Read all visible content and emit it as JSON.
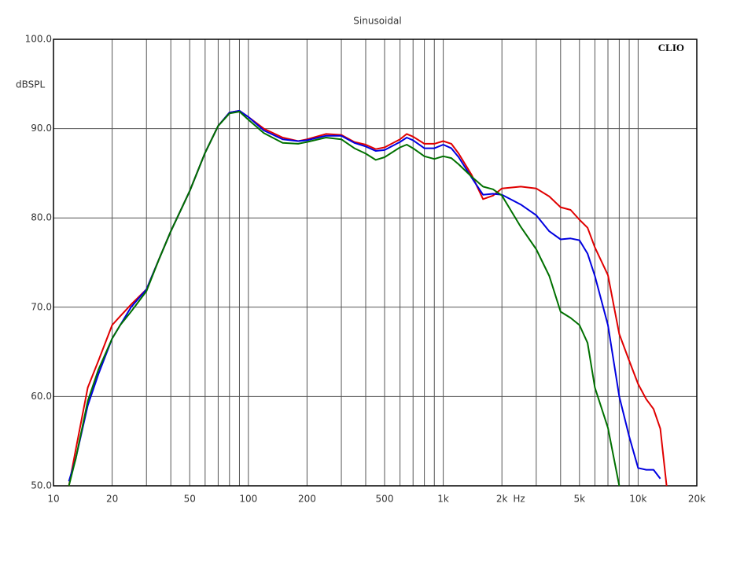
{
  "chart_data": {
    "type": "line",
    "title": "Sinusoidal",
    "ylabel": "dBSPL",
    "annotation": "CLIO",
    "x_unit": "Hz",
    "log_x": true,
    "grid": true,
    "xlim": [
      10,
      20000
    ],
    "ylim": [
      50,
      100
    ],
    "xticks": [
      {
        "value": 10,
        "label": "10"
      },
      {
        "value": 20,
        "label": "20"
      },
      {
        "value": 50,
        "label": "50"
      },
      {
        "value": 100,
        "label": "100"
      },
      {
        "value": 200,
        "label": "200"
      },
      {
        "value": 500,
        "label": "500"
      },
      {
        "value": 1000,
        "label": "1k"
      },
      {
        "value": 2000,
        "label": "2k"
      },
      {
        "value": 5000,
        "label": "5k"
      },
      {
        "value": 10000,
        "label": "10k"
      },
      {
        "value": 20000,
        "label": "20k"
      }
    ],
    "xminor": [
      30,
      40,
      60,
      70,
      80,
      90,
      300,
      400,
      600,
      700,
      800,
      900,
      3000,
      4000,
      6000,
      7000,
      8000,
      9000
    ],
    "yticks": [
      {
        "value": 50,
        "label": "50.0"
      },
      {
        "value": 60,
        "label": "60.0"
      },
      {
        "value": 70,
        "label": "70.0"
      },
      {
        "value": 80,
        "label": "80.0"
      },
      {
        "value": 90,
        "label": "90.0"
      },
      {
        "value": 100,
        "label": "100.0"
      }
    ],
    "x": [
      12,
      13,
      15,
      17,
      20,
      22,
      25,
      30,
      35,
      40,
      50,
      60,
      70,
      80,
      90,
      100,
      120,
      150,
      180,
      200,
      250,
      300,
      350,
      400,
      450,
      500,
      600,
      650,
      700,
      800,
      900,
      1000,
      1100,
      1200,
      1400,
      1600,
      1800,
      2000,
      2500,
      3000,
      3500,
      4000,
      4500,
      5000,
      5500,
      6000,
      7000,
      8000,
      9000,
      10000,
      11000,
      12000,
      13000,
      14000
    ],
    "series": [
      {
        "color": "#e00000",
        "values": [
          50,
          54,
          61,
          64,
          68,
          69,
          70.3,
          72,
          75.5,
          78.5,
          83,
          87.3,
          90.3,
          91.8,
          92,
          91.3,
          90,
          89,
          88.6,
          88.8,
          89.4,
          89.3,
          88.5,
          88.2,
          87.7,
          87.9,
          88.8,
          89.4,
          89.1,
          88.3,
          88.3,
          88.6,
          88.3,
          87.2,
          84.8,
          82.1,
          82.5,
          83.3,
          83.5,
          83.3,
          82.4,
          81.2,
          80.9,
          79.8,
          78.9,
          76.7,
          73.6,
          67,
          64,
          61.4,
          59.7,
          58.6,
          56.4,
          50
        ]
      },
      {
        "color": "#0000e0",
        "values": [
          50.5,
          53,
          59,
          62.5,
          66.5,
          68,
          70,
          72,
          75.5,
          78.5,
          83,
          87.3,
          90.3,
          91.8,
          92,
          91.3,
          89.8,
          88.8,
          88.6,
          88.7,
          89.2,
          89.2,
          88.4,
          88,
          87.5,
          87.6,
          88.5,
          89,
          88.7,
          87.8,
          87.8,
          88.2,
          87.8,
          86.8,
          84.5,
          82.6,
          82.7,
          82.6,
          81.5,
          80.3,
          78.5,
          77.6,
          77.7,
          77.5,
          76,
          73.5,
          68,
          60,
          55.5,
          52,
          51.8,
          51.8,
          50.8,
          null
        ]
      },
      {
        "color": "#007000",
        "values": [
          50,
          53,
          59.5,
          63,
          66.5,
          68,
          69.5,
          71.8,
          75.5,
          78.5,
          83,
          87.3,
          90.3,
          91.7,
          91.9,
          91,
          89.5,
          88.4,
          88.3,
          88.5,
          89,
          88.8,
          87.8,
          87.2,
          86.5,
          86.8,
          87.9,
          88.2,
          87.8,
          86.9,
          86.6,
          86.9,
          86.7,
          86,
          84.6,
          83.5,
          83.2,
          82.5,
          79,
          76.5,
          73.5,
          69.5,
          68.8,
          68,
          66,
          61,
          56.5,
          50,
          null,
          null,
          null,
          null,
          null,
          null
        ]
      }
    ]
  }
}
